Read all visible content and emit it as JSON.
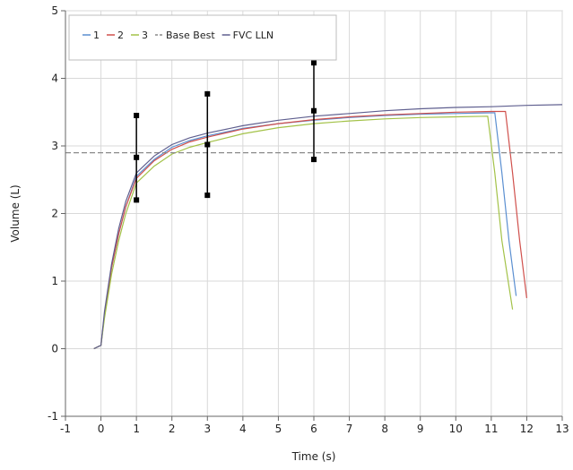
{
  "chart_data": {
    "type": "line",
    "title": "",
    "xlabel": "Time (s)",
    "ylabel": "Volume (L)",
    "xlim": [
      -1,
      13
    ],
    "ylim": [
      -1,
      5
    ],
    "xticks": [
      "-1",
      "0",
      "1",
      "2",
      "3",
      "4",
      "5",
      "6",
      "7",
      "8",
      "9",
      "10",
      "11",
      "12",
      "13"
    ],
    "yticks": [
      "-1",
      "0",
      "1",
      "2",
      "3",
      "4",
      "5"
    ],
    "grid": true,
    "legend_position": "top-left",
    "series": [
      {
        "name": "1",
        "color": "#5b8fd1",
        "points": [
          [
            -0.2,
            0
          ],
          [
            0,
            0.05
          ],
          [
            0.1,
            0.5
          ],
          [
            0.3,
            1.2
          ],
          [
            0.5,
            1.7
          ],
          [
            0.7,
            2.1
          ],
          [
            1,
            2.55
          ],
          [
            1.5,
            2.8
          ],
          [
            2,
            2.98
          ],
          [
            2.5,
            3.08
          ],
          [
            3,
            3.15
          ],
          [
            4,
            3.26
          ],
          [
            5,
            3.33
          ],
          [
            6,
            3.38
          ],
          [
            7,
            3.42
          ],
          [
            8,
            3.45
          ],
          [
            9,
            3.47
          ],
          [
            10,
            3.48
          ],
          [
            11,
            3.49
          ],
          [
            11.1,
            3.49
          ],
          [
            11.3,
            2.6
          ],
          [
            11.5,
            1.6
          ],
          [
            11.7,
            0.78
          ]
        ]
      },
      {
        "name": "2",
        "color": "#d0504c",
        "points": [
          [
            -0.2,
            0
          ],
          [
            0,
            0.05
          ],
          [
            0.1,
            0.5
          ],
          [
            0.3,
            1.2
          ],
          [
            0.5,
            1.7
          ],
          [
            0.7,
            2.1
          ],
          [
            1,
            2.52
          ],
          [
            1.5,
            2.78
          ],
          [
            2,
            2.95
          ],
          [
            2.5,
            3.06
          ],
          [
            3,
            3.13
          ],
          [
            4,
            3.25
          ],
          [
            5,
            3.33
          ],
          [
            6,
            3.39
          ],
          [
            7,
            3.43
          ],
          [
            8,
            3.46
          ],
          [
            9,
            3.48
          ],
          [
            10,
            3.5
          ],
          [
            11,
            3.51
          ],
          [
            11.4,
            3.51
          ],
          [
            11.6,
            2.6
          ],
          [
            11.8,
            1.6
          ],
          [
            12,
            0.75
          ]
        ]
      },
      {
        "name": "3",
        "color": "#a3c248",
        "points": [
          [
            -0.2,
            0
          ],
          [
            0,
            0.05
          ],
          [
            0.1,
            0.45
          ],
          [
            0.3,
            1.1
          ],
          [
            0.5,
            1.6
          ],
          [
            0.7,
            2.0
          ],
          [
            1,
            2.45
          ],
          [
            1.5,
            2.7
          ],
          [
            2,
            2.88
          ],
          [
            2.5,
            2.98
          ],
          [
            3,
            3.05
          ],
          [
            4,
            3.18
          ],
          [
            5,
            3.27
          ],
          [
            6,
            3.33
          ],
          [
            7,
            3.37
          ],
          [
            8,
            3.4
          ],
          [
            9,
            3.42
          ],
          [
            10,
            3.43
          ],
          [
            10.9,
            3.44
          ],
          [
            11.1,
            2.6
          ],
          [
            11.3,
            1.6
          ],
          [
            11.6,
            0.58
          ]
        ]
      },
      {
        "name": "Base Best",
        "color": "#8a8a8a",
        "dashed": true,
        "points": [
          [
            -1,
            2.9
          ],
          [
            13,
            2.9
          ]
        ]
      },
      {
        "name": "FVC LLN",
        "color": "#5f5f8f",
        "points": [
          [
            -0.2,
            0
          ],
          [
            0,
            0.05
          ],
          [
            0.1,
            0.55
          ],
          [
            0.3,
            1.25
          ],
          [
            0.5,
            1.78
          ],
          [
            0.7,
            2.18
          ],
          [
            1,
            2.6
          ],
          [
            1.5,
            2.85
          ],
          [
            2,
            3.02
          ],
          [
            2.5,
            3.12
          ],
          [
            3,
            3.19
          ],
          [
            4,
            3.3
          ],
          [
            5,
            3.38
          ],
          [
            6,
            3.44
          ],
          [
            7,
            3.48
          ],
          [
            8,
            3.52
          ],
          [
            9,
            3.55
          ],
          [
            10,
            3.57
          ],
          [
            11,
            3.58
          ],
          [
            12,
            3.6
          ],
          [
            13,
            3.61
          ]
        ]
      }
    ],
    "error_bars": [
      {
        "x": 1,
        "low": 2.2,
        "mid": 2.83,
        "high": 3.45
      },
      {
        "x": 3,
        "low": 2.27,
        "mid": 3.02,
        "high": 3.77
      },
      {
        "x": 6,
        "low": 2.8,
        "mid": 3.52,
        "high": 4.23
      }
    ]
  }
}
